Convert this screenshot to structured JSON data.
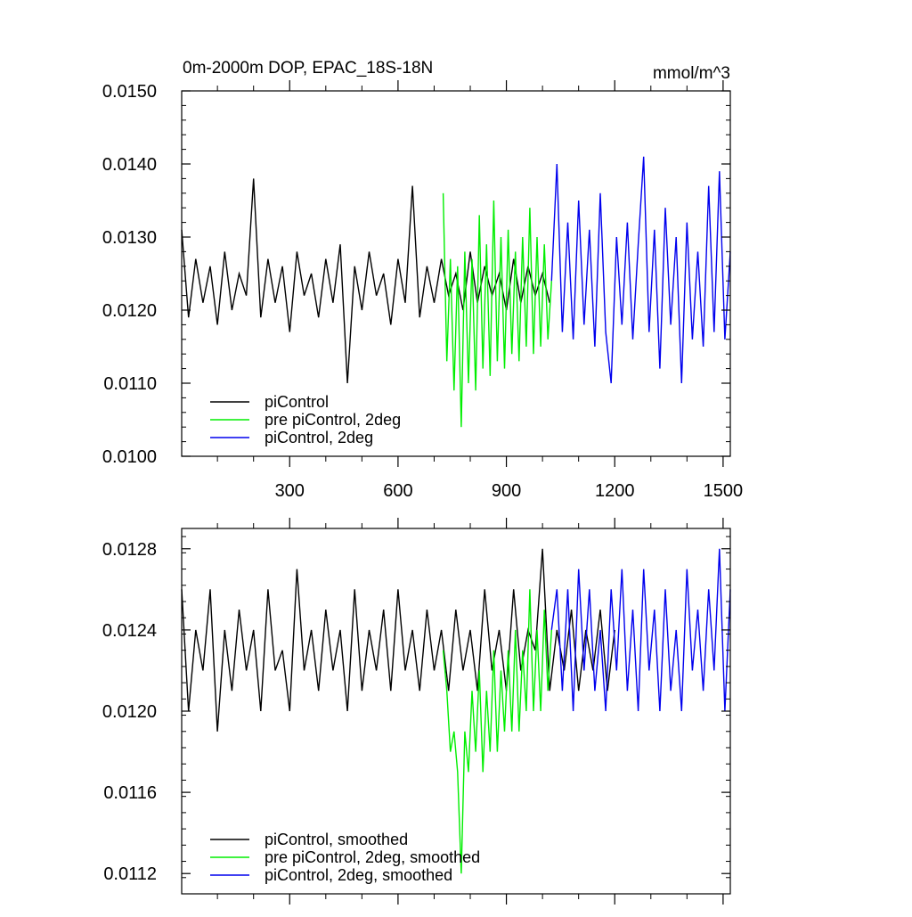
{
  "chart_data": [
    {
      "type": "line",
      "title": "0m-2000m DOP, EPAC_18S-18N",
      "units": "mmol/m^3",
      "xlim": [
        1,
        1520
      ],
      "ylim": [
        0.01,
        0.015
      ],
      "x_ticks": [
        300,
        600,
        900,
        1200,
        1500
      ],
      "x_tick_labels": [
        "300",
        "600",
        "900",
        "1200",
        "1500"
      ],
      "y_ticks": [
        0.01,
        0.011,
        0.012,
        0.013,
        0.014,
        0.015
      ],
      "y_tick_labels": [
        "0.0100",
        "0.0110",
        "0.0120",
        "0.0130",
        "0.0140",
        "0.0150"
      ],
      "legend_position": "bottom-left",
      "series": [
        {
          "name": "piControl",
          "color": "#000000",
          "x": [
            1,
            20,
            40,
            60,
            80,
            100,
            120,
            140,
            160,
            180,
            200,
            220,
            240,
            260,
            280,
            300,
            320,
            340,
            360,
            380,
            400,
            420,
            440,
            460,
            480,
            500,
            520,
            540,
            560,
            580,
            600,
            620,
            640,
            660,
            680,
            700,
            720,
            740,
            760,
            780,
            800,
            820,
            840,
            860,
            880,
            900,
            920,
            940,
            960,
            980,
            1000,
            1020
          ],
          "values": [
            0.0131,
            0.0119,
            0.0127,
            0.0121,
            0.0126,
            0.0118,
            0.0128,
            0.012,
            0.0125,
            0.0122,
            0.0138,
            0.0119,
            0.0127,
            0.0121,
            0.0126,
            0.0117,
            0.0128,
            0.0122,
            0.0125,
            0.0119,
            0.0127,
            0.0121,
            0.0129,
            0.011,
            0.0126,
            0.012,
            0.0128,
            0.0122,
            0.0125,
            0.0118,
            0.0127,
            0.0121,
            0.0137,
            0.0119,
            0.0126,
            0.0121,
            0.0127,
            0.0122,
            0.0125,
            0.012,
            0.0128,
            0.0121,
            0.0126,
            0.0122,
            0.0125,
            0.012,
            0.0127,
            0.0121,
            0.0126,
            0.0122,
            0.0125,
            0.0121
          ]
        },
        {
          "name": "pre piControl, 2deg",
          "color": "#00ee00",
          "x": [
            725,
            735,
            745,
            755,
            765,
            775,
            785,
            795,
            805,
            815,
            825,
            835,
            845,
            855,
            865,
            875,
            885,
            895,
            905,
            915,
            925,
            935,
            945,
            955,
            965,
            975,
            985,
            995,
            1005,
            1015,
            1025
          ],
          "values": [
            0.0136,
            0.0113,
            0.0127,
            0.0109,
            0.0126,
            0.0104,
            0.0128,
            0.011,
            0.0127,
            0.0109,
            0.0133,
            0.0112,
            0.0129,
            0.0111,
            0.0135,
            0.0113,
            0.013,
            0.0112,
            0.0131,
            0.0114,
            0.0128,
            0.0113,
            0.013,
            0.0115,
            0.0134,
            0.0114,
            0.013,
            0.0115,
            0.0129,
            0.0116,
            0.0124
          ]
        },
        {
          "name": "piControl, 2deg",
          "color": "#0000ee",
          "x": [
            1025,
            1040,
            1055,
            1070,
            1085,
            1100,
            1115,
            1130,
            1145,
            1160,
            1175,
            1190,
            1205,
            1220,
            1235,
            1250,
            1265,
            1280,
            1295,
            1310,
            1325,
            1340,
            1355,
            1370,
            1385,
            1400,
            1415,
            1430,
            1445,
            1460,
            1475,
            1490,
            1505,
            1520
          ],
          "values": [
            0.0124,
            0.014,
            0.0117,
            0.0132,
            0.0116,
            0.0135,
            0.0118,
            0.0131,
            0.0115,
            0.0136,
            0.0117,
            0.011,
            0.013,
            0.0118,
            0.0132,
            0.0116,
            0.0129,
            0.0141,
            0.0117,
            0.0131,
            0.0112,
            0.0134,
            0.0118,
            0.013,
            0.011,
            0.0132,
            0.0116,
            0.0128,
            0.0115,
            0.0137,
            0.0117,
            0.0139,
            0.0116,
            0.0128
          ]
        }
      ]
    },
    {
      "type": "line",
      "xlim": [
        1,
        1520
      ],
      "ylim": [
        0.0111,
        0.0129
      ],
      "x_ticks": [
        300,
        600,
        900,
        1200,
        1500
      ],
      "y_ticks": [
        0.0112,
        0.0116,
        0.012,
        0.0124,
        0.0128
      ],
      "y_tick_labels": [
        "0.0112",
        "0.0116",
        "0.0120",
        "0.0124",
        "0.0128"
      ],
      "legend_position": "bottom-left",
      "series": [
        {
          "name": "piControl, smoothed",
          "color": "#000000",
          "x": [
            1,
            20,
            40,
            60,
            80,
            100,
            120,
            140,
            160,
            180,
            200,
            220,
            240,
            260,
            280,
            300,
            320,
            340,
            360,
            380,
            400,
            420,
            440,
            460,
            480,
            500,
            520,
            540,
            560,
            580,
            600,
            620,
            640,
            660,
            680,
            700,
            720,
            740,
            760,
            780,
            800,
            820,
            840,
            860,
            880,
            900,
            920,
            940,
            960,
            980,
            1000,
            1020,
            1040,
            1060,
            1080,
            1100,
            1120,
            1140,
            1160,
            1180,
            1200
          ],
          "values": [
            0.0126,
            0.012,
            0.0124,
            0.0122,
            0.0126,
            0.0119,
            0.0124,
            0.0121,
            0.0125,
            0.0122,
            0.0124,
            0.012,
            0.0126,
            0.0122,
            0.0123,
            0.012,
            0.0127,
            0.0122,
            0.0124,
            0.0121,
            0.0125,
            0.0122,
            0.0124,
            0.012,
            0.0126,
            0.0121,
            0.0124,
            0.0122,
            0.0125,
            0.0121,
            0.0126,
            0.0122,
            0.0124,
            0.0121,
            0.0125,
            0.0122,
            0.0124,
            0.0121,
            0.0125,
            0.0122,
            0.0124,
            0.0121,
            0.0126,
            0.0122,
            0.0124,
            0.0121,
            0.0126,
            0.0122,
            0.0124,
            0.0123,
            0.0128,
            0.0121,
            0.0124,
            0.0122,
            0.0125,
            0.0121,
            0.0124,
            0.0122,
            0.0125,
            0.0121,
            0.0124
          ]
        },
        {
          "name": "pre piControl, 2deg, smoothed",
          "color": "#00ee00",
          "x": [
            725,
            735,
            745,
            755,
            765,
            775,
            785,
            795,
            805,
            815,
            825,
            835,
            845,
            855,
            865,
            875,
            885,
            895,
            905,
            915,
            925,
            935,
            945,
            955,
            965,
            975,
            985,
            995,
            1005,
            1015,
            1025
          ],
          "values": [
            0.0123,
            0.0121,
            0.0118,
            0.0119,
            0.0117,
            0.0112,
            0.0119,
            0.0117,
            0.0121,
            0.0118,
            0.0122,
            0.0117,
            0.0121,
            0.0118,
            0.0123,
            0.0118,
            0.0122,
            0.0119,
            0.0123,
            0.0119,
            0.0124,
            0.0119,
            0.0123,
            0.012,
            0.0126,
            0.012,
            0.0124,
            0.012,
            0.0125,
            0.0121,
            0.0124
          ]
        },
        {
          "name": "piControl, 2deg, smoothed",
          "color": "#0000ee",
          "x": [
            1025,
            1040,
            1055,
            1070,
            1085,
            1100,
            1115,
            1130,
            1145,
            1160,
            1175,
            1190,
            1205,
            1220,
            1235,
            1250,
            1265,
            1280,
            1295,
            1310,
            1325,
            1340,
            1355,
            1370,
            1385,
            1400,
            1415,
            1430,
            1445,
            1460,
            1475,
            1490,
            1505,
            1520
          ],
          "values": [
            0.0124,
            0.0126,
            0.0121,
            0.0126,
            0.012,
            0.0127,
            0.0122,
            0.0126,
            0.0121,
            0.0124,
            0.012,
            0.0126,
            0.0122,
            0.0127,
            0.0121,
            0.0125,
            0.012,
            0.0127,
            0.0122,
            0.0125,
            0.012,
            0.0126,
            0.0121,
            0.0124,
            0.012,
            0.0127,
            0.0122,
            0.0125,
            0.0121,
            0.0126,
            0.0122,
            0.0128,
            0.012,
            0.0126
          ]
        }
      ]
    }
  ]
}
